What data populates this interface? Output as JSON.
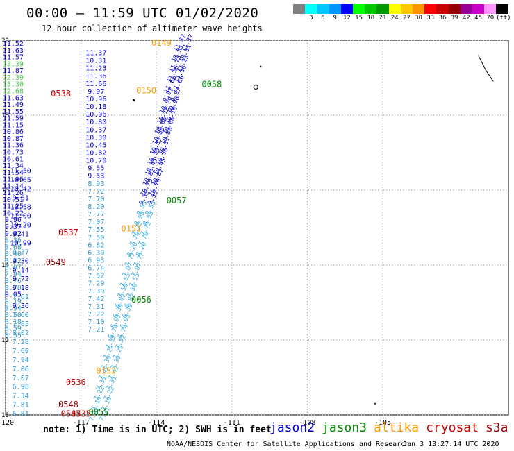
{
  "title": "00:00 – 11:59 UTC 01/02/2020",
  "subtitle": "12 hour collection of altimeter wave heights",
  "legend": {
    "bins": [
      {
        "label": "",
        "color": "#808080"
      },
      {
        "label": "3",
        "color": "#00ffff"
      },
      {
        "label": "6",
        "color": "#00c8ff"
      },
      {
        "label": "9",
        "color": "#0096ff"
      },
      {
        "label": "12",
        "color": "#0000ff"
      },
      {
        "label": "15",
        "color": "#00ff00"
      },
      {
        "label": "18",
        "color": "#00c800"
      },
      {
        "label": "21",
        "color": "#009600"
      },
      {
        "label": "24",
        "color": "#ffff00"
      },
      {
        "label": "27",
        "color": "#ffc800"
      },
      {
        "label": "30",
        "color": "#ff9600"
      },
      {
        "label": "33",
        "color": "#ff0000"
      },
      {
        "label": "36",
        "color": "#c80000"
      },
      {
        "label": "39",
        "color": "#960000"
      },
      {
        "label": "42",
        "color": "#960096"
      },
      {
        "label": "45",
        "color": "#c800c8"
      },
      {
        "label": "70",
        "color": "#ff96ff"
      },
      {
        "label": "(ft)",
        "color": "#000000"
      }
    ]
  },
  "note": "note: 1) Time is in UTC; 2) SWH is in feet",
  "satellites": [
    {
      "name": "jason2",
      "color": "#0000cc"
    },
    {
      "name": "jason3",
      "color": "#008800"
    },
    {
      "name": "altika",
      "color": "#ff9900"
    },
    {
      "name": "cryosat",
      "color": "#cc0000"
    },
    {
      "name": "s3a",
      "color": "#990000"
    }
  ],
  "credit": "NOAA/NESDIS Center for Satellite Applications and Research",
  "credit_time": "Jan  3 13:27:14 UTC 2020",
  "chart_data": {
    "type": "scatter",
    "xlim": [
      -120,
      -100
    ],
    "ylim": [
      10,
      20
    ],
    "x_ticks": [
      -120,
      -117,
      -114,
      -111,
      -108,
      -105
    ],
    "x_tick_labels": [
      "-120",
      "-117",
      "-114",
      "-111",
      "-108",
      "-105"
    ],
    "y_ticks": [
      10,
      12,
      14,
      16,
      18,
      20
    ],
    "y_tick_labels": [
      "10",
      "12",
      "14",
      "16",
      "18",
      "20"
    ],
    "grid": true,
    "left_column": {
      "lon": -119.7,
      "lat_start": 19.85,
      "lat_step": -0.181,
      "values": [
        "11.52",
        "11.63",
        "11.57",
        "13.39",
        "11.87",
        "12.39",
        "13.30",
        "12.68",
        "11.63",
        "11.49",
        "11.55",
        "11.59",
        "11.15",
        "10.86",
        "10.87",
        "11.36",
        "10.73",
        "10.61",
        "11.34",
        "11.54",
        "11.06",
        "11.14",
        "11.26",
        "10.51",
        "11.25",
        "10.22",
        "9.96",
        "9.37",
        "9.02",
        "8.36",
        "8.68",
        "8.40",
        "8.82",
        "8.07",
        "7.94",
        "8.76",
        "8.70",
        "9.05",
        "9.19",
        "8.94",
        "8.50",
        "8.18",
        "8.59",
        "8.55"
      ],
      "colors": [
        "#0000cc",
        "#0000cc",
        "#0000cc",
        "#44cc44",
        "#0000cc",
        "#44cc44",
        "#44cc44",
        "#44cc44",
        "#0000cc",
        "#0000cc",
        "#0000cc",
        "#0000cc",
        "#0000cc",
        "#0000cc",
        "#0000cc",
        "#0000cc",
        "#0000cc",
        "#0000cc",
        "#0000cc",
        "#0000cc",
        "#0000cc",
        "#0000cc",
        "#0000cc",
        "#0000cc",
        "#0000cc",
        "#0000cc",
        "#0000cc",
        "#0000cc",
        "#0000cc",
        "#3399cc",
        "#3399cc",
        "#3399cc",
        "#3399cc",
        "#3399cc",
        "#3399cc",
        "#3399cc",
        "#3399cc",
        "#0000cc",
        "#3399cc",
        "#3399cc",
        "#3399cc",
        "#3399cc",
        "#3399cc",
        "#3399cc"
      ]
    },
    "west_column": {
      "lon": -119.4,
      "lat_start": 16.45,
      "lat_step": -0.24,
      "values": [
        "11.50",
        "10.65",
        "10.42",
        "9.61",
        "10.58",
        "11.00",
        "10.20",
        "9.41",
        "10.99",
        "8.37",
        "9.30",
        "9.14",
        "9.72",
        "9.18",
        "7.61",
        "9.36",
        "7.60",
        "7.85",
        "8.02",
        "7.28",
        "7.69",
        "7.94",
        "7.06",
        "7.07",
        "6.98",
        "7.34",
        "7.81",
        "6.81"
      ],
      "colors": [
        "#0000cc",
        "#0000cc",
        "#0000cc",
        "#0000cc",
        "#0000cc",
        "#0000cc",
        "#0000cc",
        "#0000cc",
        "#0000cc",
        "#3399cc",
        "#0000cc",
        "#0000cc",
        "#0000cc",
        "#0000cc",
        "#3399cc",
        "#0000cc",
        "#3399cc",
        "#3399cc",
        "#3399cc",
        "#3399cc",
        "#3399cc",
        "#3399cc",
        "#3399cc",
        "#3399cc",
        "#3399cc",
        "#3399cc",
        "#3399cc",
        "#3399cc"
      ]
    },
    "middle_column": {
      "lon": -116.4,
      "lat_start": 19.6,
      "lat_step": -0.205,
      "values": [
        "11.37",
        "10.31",
        "11.23",
        "11.36",
        "11.66",
        "9.97",
        "10.96",
        "10.18",
        "10.06",
        "10.80",
        "10.37",
        "10.30",
        "10.45",
        "10.82",
        "10.70",
        "9.55",
        "9.53",
        "8.93",
        "7.72",
        "7.70",
        "8.20",
        "7.77",
        "7.07",
        "7.55",
        "7.50",
        "6.82",
        "6.39",
        "6.93",
        "6.74",
        "7.52",
        "7.29",
        "7.39",
        "7.42",
        "7.31",
        "7.22",
        "7.10",
        "7.21"
      ],
      "colors": [
        "#0000cc",
        "#0000cc",
        "#0000cc",
        "#0000cc",
        "#0000cc",
        "#0000cc",
        "#0000cc",
        "#0000cc",
        "#0000cc",
        "#0000cc",
        "#0000cc",
        "#0000cc",
        "#0000cc",
        "#0000cc",
        "#0000cc",
        "#0000cc",
        "#0000cc",
        "#3399cc",
        "#3399cc",
        "#3399cc",
        "#3399cc",
        "#3399cc",
        "#3399cc",
        "#3399cc",
        "#3399cc",
        "#3399cc",
        "#3399cc",
        "#3399cc",
        "#3399cc",
        "#3399cc",
        "#3399cc",
        "#3399cc",
        "#3399cc",
        "#3399cc",
        "#3399cc",
        "#3399cc",
        "#3399cc"
      ]
    },
    "track_labels": [
      {
        "text": "0149",
        "lon": -114.2,
        "lat": 19.85,
        "color": "#ff9900"
      },
      {
        "text": "0150",
        "lon": -114.8,
        "lat": 18.58,
        "color": "#ff9900"
      },
      {
        "text": "0151",
        "lon": -115.4,
        "lat": 14.9,
        "color": "#ff9900"
      },
      {
        "text": "0152",
        "lon": -116.4,
        "lat": 11.1,
        "color": "#ff9900"
      },
      {
        "text": "0058",
        "lon": -112.2,
        "lat": 18.75,
        "color": "#008800"
      },
      {
        "text": "0057",
        "lon": -113.6,
        "lat": 15.65,
        "color": "#008800"
      },
      {
        "text": "0056",
        "lon": -115.0,
        "lat": 13.0,
        "color": "#008800"
      },
      {
        "text": "0055",
        "lon": -116.7,
        "lat": 10.0,
        "color": "#008800"
      },
      {
        "text": "0538",
        "lon": -118.2,
        "lat": 18.5,
        "color": "#cc0000"
      },
      {
        "text": "0537",
        "lon": -117.9,
        "lat": 14.8,
        "color": "#cc0000"
      },
      {
        "text": "0536",
        "lon": -117.6,
        "lat": 10.8,
        "color": "#cc0000"
      },
      {
        "text": "0535",
        "lon": -117.4,
        "lat": 9.95,
        "color": "#cc0000"
      },
      {
        "text": "0549",
        "lon": -118.4,
        "lat": 14.0,
        "color": "#990000"
      },
      {
        "text": "0548",
        "lon": -117.9,
        "lat": 10.2,
        "color": "#990000"
      },
      {
        "text": "0547",
        "lon": -117.8,
        "lat": 9.95,
        "color": "#990000"
      }
    ]
  }
}
